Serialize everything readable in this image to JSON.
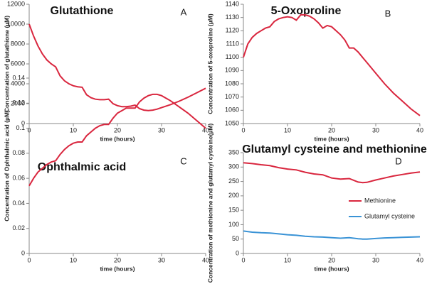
{
  "chart_data": [
    {
      "type": "line",
      "title": "Glutathione",
      "panel_label": "A",
      "x_label": "time (hours)",
      "y_label": "Concentration of glutathione (µM)",
      "x": [
        0,
        1,
        2,
        3,
        4,
        5,
        6,
        7,
        8,
        9,
        10,
        11,
        12,
        13,
        14,
        15,
        16,
        17,
        18,
        19,
        20,
        21,
        22,
        23,
        24,
        25,
        26,
        27,
        28,
        29,
        30,
        32,
        34,
        36,
        38,
        40
      ],
      "values": [
        10000,
        8800,
        7800,
        7000,
        6400,
        6000,
        5700,
        4800,
        4300,
        4000,
        3800,
        3700,
        3650,
        2900,
        2600,
        2450,
        2400,
        2400,
        2450,
        2000,
        1800,
        1700,
        1700,
        1750,
        1850,
        1500,
        1350,
        1300,
        1350,
        1450,
        1600,
        1900,
        2250,
        2650,
        3100,
        3550
      ],
      "color": "#d9263e",
      "xlim": [
        0,
        40
      ],
      "xticks": [
        0,
        10,
        20,
        30,
        40
      ],
      "ylim": [
        0,
        12000
      ],
      "yticks": [
        0,
        2000,
        4000,
        6000,
        8000,
        10000,
        12000
      ]
    },
    {
      "type": "line",
      "title": "5-Oxoproline",
      "panel_label": "B",
      "x_label": "time (hours)",
      "y_label": "Concentration of 5-oxoproline (µM)",
      "x": [
        0,
        1,
        2,
        3,
        4,
        5,
        6,
        7,
        8,
        9,
        10,
        11,
        12,
        13,
        14,
        15,
        16,
        17,
        18,
        19,
        20,
        21,
        22,
        23,
        24,
        25,
        26,
        27,
        28,
        30,
        32,
        34,
        36,
        38,
        40
      ],
      "values": [
        1100,
        1110,
        1115,
        1118,
        1120,
        1122,
        1123,
        1127,
        1129,
        1130,
        1130.5,
        1130,
        1128,
        1132,
        1132,
        1131,
        1129,
        1126,
        1122,
        1124,
        1123,
        1120,
        1117,
        1113,
        1107,
        1107,
        1104,
        1100,
        1096,
        1088,
        1080,
        1073,
        1067,
        1061,
        1056
      ],
      "color": "#d9263e",
      "xlim": [
        0,
        40
      ],
      "xticks": [
        0,
        10,
        20,
        30,
        40
      ],
      "ylim": [
        1050,
        1140
      ],
      "yticks": [
        1050,
        1060,
        1070,
        1080,
        1090,
        1100,
        1110,
        1120,
        1130,
        1140
      ]
    },
    {
      "type": "line",
      "title": "Ophthalmic acid",
      "panel_label": "C",
      "x_label": "time (hours)",
      "y_label": "Concentration of Ophthalmic acid  (µM)",
      "x": [
        0,
        1,
        2,
        3,
        4,
        5,
        6,
        7,
        8,
        9,
        10,
        11,
        12,
        13,
        14,
        15,
        16,
        17,
        18,
        19,
        20,
        21,
        22,
        23,
        24,
        25,
        26,
        27,
        28,
        29,
        30,
        32,
        34,
        36,
        38,
        40
      ],
      "values": [
        0.054,
        0.06,
        0.065,
        0.068,
        0.071,
        0.073,
        0.074,
        0.079,
        0.083,
        0.086,
        0.088,
        0.089,
        0.089,
        0.094,
        0.097,
        0.1,
        0.102,
        0.103,
        0.103,
        0.108,
        0.112,
        0.114,
        0.116,
        0.116,
        0.116,
        0.121,
        0.124,
        0.126,
        0.127,
        0.127,
        0.126,
        0.122,
        0.117,
        0.112,
        0.106,
        0.1
      ],
      "color": "#d9263e",
      "xlim": [
        0,
        40
      ],
      "xticks": [
        0,
        10,
        20,
        30,
        40
      ],
      "ylim": [
        0,
        0.14
      ],
      "yticks": [
        0,
        0.02,
        0.04,
        0.06,
        0.08,
        0.1,
        0.12,
        0.14
      ]
    },
    {
      "type": "line",
      "title": "Glutamyl cysteine and methionine",
      "panel_label": "D",
      "x_label": "time (hours)",
      "y_label": "Concentration of methionine and glutamyl cysteine(µM)",
      "x": [
        0,
        2,
        4,
        6,
        8,
        10,
        12,
        14,
        16,
        18,
        20,
        22,
        24,
        26,
        27,
        28,
        30,
        32,
        34,
        36,
        38,
        40
      ],
      "series": [
        {
          "name": "Methionine",
          "color": "#d9263e",
          "values": [
            315,
            312,
            308,
            305,
            298,
            293,
            290,
            282,
            276,
            273,
            262,
            258,
            260,
            248,
            246,
            247,
            255,
            262,
            269,
            274,
            279,
            283
          ]
        },
        {
          "name": "Glutamyl cysteine",
          "color": "#3a93d6",
          "values": [
            78,
            74,
            72,
            71,
            68,
            65,
            63,
            60,
            58,
            57,
            55,
            53,
            55,
            51,
            50,
            50,
            52,
            54,
            55,
            56,
            57,
            58
          ]
        }
      ],
      "legend": "right",
      "xlim": [
        0,
        40
      ],
      "xticks": [
        0,
        10,
        20,
        30,
        40
      ],
      "ylim": [
        0,
        350
      ],
      "yticks": [
        0,
        50,
        100,
        150,
        200,
        250,
        300,
        350
      ]
    }
  ]
}
